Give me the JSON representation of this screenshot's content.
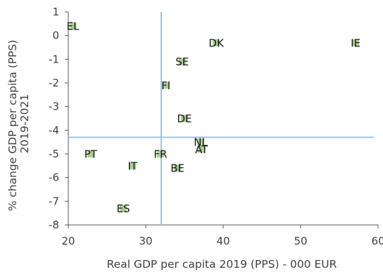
{
  "chart_data": {
    "type": "scatter",
    "xlabel": "Real GDP per capita 2019 (PPS) - 000 EUR",
    "ylabel_lines": [
      "% change GDP per capita (PPS)",
      "2019-2021"
    ],
    "xlim": [
      20,
      60
    ],
    "ylim": [
      -8,
      1
    ],
    "xticks": [
      20,
      30,
      40,
      50,
      60
    ],
    "yticks": [
      1,
      0,
      -1,
      -2,
      -3,
      -4,
      -5,
      -6,
      -7,
      -8
    ],
    "reference_lines": {
      "x": 32,
      "y": -4.3
    },
    "grid": false,
    "marker_color": "#a9d18e",
    "line_color": "#9dc3e6",
    "points": [
      {
        "label": "EL",
        "x": 20.6,
        "y": 0.4
      },
      {
        "label": "DK",
        "x": 39.1,
        "y": -0.3
      },
      {
        "label": "IE",
        "x": 57.1,
        "y": -0.3
      },
      {
        "label": "SE",
        "x": 34.7,
        "y": -1.1
      },
      {
        "label": "FI",
        "x": 32.6,
        "y": -2.1
      },
      {
        "label": "DE",
        "x": 35.0,
        "y": -3.5
      },
      {
        "label": "NL",
        "x": 37.1,
        "y": -4.5
      },
      {
        "label": "AT",
        "x": 37.2,
        "y": -4.8
      },
      {
        "label": "PT",
        "x": 22.9,
        "y": -5.0
      },
      {
        "label": "FR",
        "x": 31.9,
        "y": -5.0
      },
      {
        "label": "IT",
        "x": 28.3,
        "y": -5.5
      },
      {
        "label": "BE",
        "x": 34.1,
        "y": -5.6
      },
      {
        "label": "ES",
        "x": 27.1,
        "y": -7.3
      }
    ]
  }
}
